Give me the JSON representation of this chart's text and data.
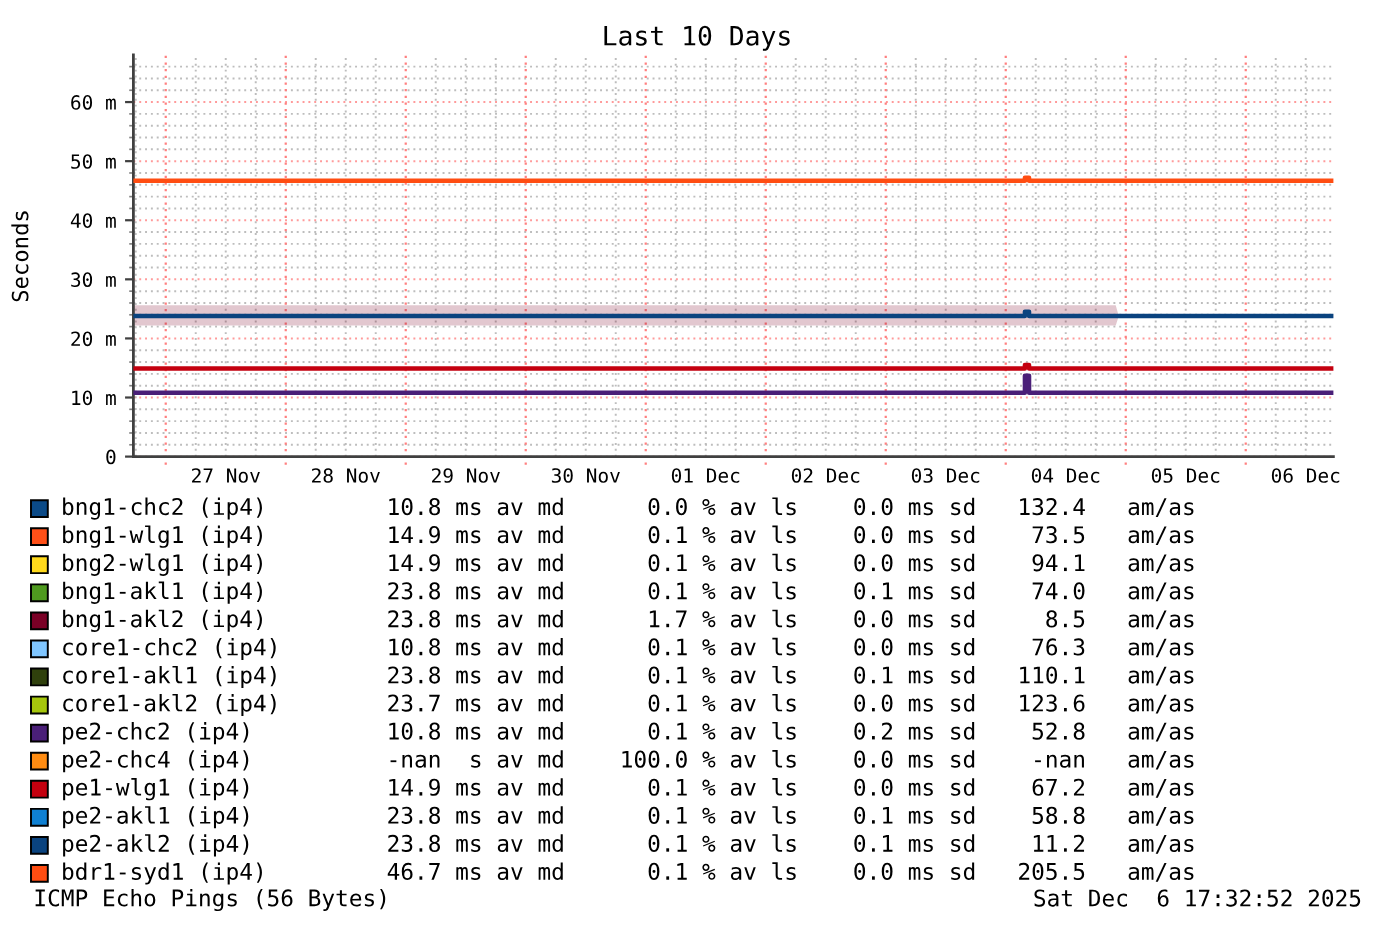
{
  "chart_data": {
    "type": "line",
    "title": "Last 10 Days",
    "ylabel": "Seconds",
    "xlim": [
      "2025-11-26T17:32",
      "2025-12-06T17:32"
    ],
    "xticks": [
      {
        "value": "2025-11-26T18:00",
        "label": null
      },
      {
        "value": "2025-11-27T06:00",
        "label": null
      },
      {
        "value": "2025-11-27T12:00",
        "label": "27 Nov"
      },
      {
        "value": "2025-11-27T18:00",
        "label": null
      },
      {
        "value": "2025-11-28T06:00",
        "label": null
      },
      {
        "value": "2025-11-28T12:00",
        "label": "28 Nov"
      },
      {
        "value": "2025-11-28T18:00",
        "label": null
      },
      {
        "value": "2025-11-29T06:00",
        "label": null
      },
      {
        "value": "2025-11-29T12:00",
        "label": "29 Nov"
      },
      {
        "value": "2025-11-29T18:00",
        "label": null
      },
      {
        "value": "2025-11-30T06:00",
        "label": null
      },
      {
        "value": "2025-11-30T12:00",
        "label": "30 Nov"
      },
      {
        "value": "2025-11-30T18:00",
        "label": null
      },
      {
        "value": "2025-12-01T06:00",
        "label": null
      },
      {
        "value": "2025-12-01T12:00",
        "label": "01 Dec"
      },
      {
        "value": "2025-12-01T18:00",
        "label": null
      },
      {
        "value": "2025-12-02T06:00",
        "label": null
      },
      {
        "value": "2025-12-02T12:00",
        "label": "02 Dec"
      },
      {
        "value": "2025-12-02T18:00",
        "label": null
      },
      {
        "value": "2025-12-03T06:00",
        "label": null
      },
      {
        "value": "2025-12-03T12:00",
        "label": "03 Dec"
      },
      {
        "value": "2025-12-03T18:00",
        "label": null
      },
      {
        "value": "2025-12-04T06:00",
        "label": null
      },
      {
        "value": "2025-12-04T12:00",
        "label": "04 Dec"
      },
      {
        "value": "2025-12-04T18:00",
        "label": null
      },
      {
        "value": "2025-12-05T06:00",
        "label": null
      },
      {
        "value": "2025-12-05T12:00",
        "label": "05 Dec"
      },
      {
        "value": "2025-12-05T18:00",
        "label": null
      },
      {
        "value": "2025-12-06T06:00",
        "label": null
      },
      {
        "value": "2025-12-06T12:00",
        "label": "06 Dec"
      }
    ],
    "ylim": [
      0,
      68
    ],
    "yticks": [
      0,
      {
        "value": 10,
        "label": "10 m"
      },
      {
        "value": 20,
        "label": "20 m"
      },
      {
        "value": 30,
        "label": "30 m"
      },
      {
        "value": 40,
        "label": "40 m"
      },
      {
        "value": 50,
        "label": "50 m"
      },
      {
        "value": 60,
        "label": "60 m"
      },
      {
        "value": 2,
        "label": null
      },
      {
        "value": 4,
        "label": null
      },
      {
        "value": 6,
        "label": null
      },
      {
        "value": 8,
        "label": null
      },
      {
        "value": 12,
        "label": null
      },
      {
        "value": 14,
        "label": null
      },
      {
        "value": 16,
        "label": null
      },
      {
        "value": 18,
        "label": null
      },
      {
        "value": 22,
        "label": null
      },
      {
        "value": 24,
        "label": null
      },
      {
        "value": 26,
        "label": null
      },
      {
        "value": 28,
        "label": null
      },
      {
        "value": 32,
        "label": null
      },
      {
        "value": 34,
        "label": null
      },
      {
        "value": 36,
        "label": null
      },
      {
        "value": 38,
        "label": null
      },
      {
        "value": 42,
        "label": null
      },
      {
        "value": 44,
        "label": null
      },
      {
        "value": 46,
        "label": null
      },
      {
        "value": 48,
        "label": null
      },
      {
        "value": 52,
        "label": null
      },
      {
        "value": 54,
        "label": null
      },
      {
        "value": 56,
        "label": null
      },
      {
        "value": 58,
        "label": null
      },
      {
        "value": 62,
        "label": null
      },
      {
        "value": 64,
        "label": null
      },
      {
        "value": 66,
        "label": null
      }
    ],
    "grid": true,
    "legend": "bottom",
    "ref_lines": [
      {
        "axis": "x",
        "value": "2025-11-27T00:00",
        "color": "#ff8080",
        "line_style": "dotted"
      },
      {
        "axis": "x",
        "value": "2025-11-28T00:00",
        "color": "#ff8080",
        "line_style": "dotted"
      },
      {
        "axis": "x",
        "value": "2025-11-29T00:00",
        "color": "#ff8080",
        "line_style": "dotted"
      },
      {
        "axis": "x",
        "value": "2025-11-30T00:00",
        "color": "#ff8080",
        "line_style": "dotted"
      },
      {
        "axis": "x",
        "value": "2025-12-01T00:00",
        "color": "#ff8080",
        "line_style": "dotted"
      },
      {
        "axis": "x",
        "value": "2025-12-02T00:00",
        "color": "#ff8080",
        "line_style": "dotted"
      },
      {
        "axis": "x",
        "value": "2025-12-03T00:00",
        "color": "#ff8080",
        "line_style": "dotted"
      },
      {
        "axis": "x",
        "value": "2025-12-04T00:00",
        "color": "#ff8080",
        "line_style": "dotted"
      },
      {
        "axis": "x",
        "value": "2025-12-05T00:00",
        "color": "#ff8080",
        "line_style": "dotted"
      },
      {
        "axis": "x",
        "value": "2025-12-06T00:00",
        "color": "#ff8080",
        "line_style": "dotted"
      }
    ],
    "series": [
      {
        "name": "bng1-chc2 (ip4)",
        "color": "#0b4a87"
      },
      {
        "name": "bng1-wlg1 (ip4)",
        "color": "#ff5018"
      },
      {
        "name": "bng2-wlg1 (ip4)",
        "color": "#ffd91c"
      },
      {
        "name": "bng1-akl1 (ip4)",
        "color": "#4f9a1f"
      },
      {
        "name": "bng1-akl2 (ip4)",
        "color": "#7a0026",
        "x": [
          "2025-11-26T17:32",
          "2025-12-04T22:00",
          "2025-12-04T22:30",
          "2025-12-06T17:32"
        ],
        "values": [
          null,
          null,
          null,
          null
        ],
        "lower": [
          22.2,
          22.2,
          23.5,
          23.5
        ],
        "upper": [
          25.6,
          25.6,
          24.1,
          24.1
        ]
      },
      {
        "name": "core1-chc2 (ip4)",
        "color": "#80c6ff"
      },
      {
        "name": "core1-akl1 (ip4)",
        "color": "#2f400c"
      },
      {
        "name": "core1-akl2 (ip4)",
        "color": "#a5c60c"
      },
      {
        "name": "pe2-chc2 (ip4)",
        "color": "#4a1f78",
        "x": [
          "2025-11-26T17:32",
          "2025-12-04T03:50",
          "2025-12-04T03:50",
          "2025-12-04T04:40",
          "2025-12-04T04:40",
          "2025-12-06T17:32"
        ],
        "values": [
          10.8,
          10.8,
          13.7,
          13.7,
          10.8,
          10.8
        ]
      },
      {
        "name": "pe2-chc4 (ip4)",
        "color": "#ff8c12"
      },
      {
        "name": "pe1-wlg1 (ip4)",
        "color": "#c4000f",
        "x": [
          "2025-11-26T17:32",
          "2025-12-04T03:50",
          "2025-12-04T03:50",
          "2025-12-04T04:40",
          "2025-12-04T04:40",
          "2025-12-06T17:32"
        ],
        "values": [
          14.9,
          14.9,
          15.5,
          15.5,
          14.9,
          14.9
        ]
      },
      {
        "name": "pe2-akl1 (ip4)",
        "color": "#0f80d2"
      },
      {
        "name": "pe2-akl2 (ip4)",
        "color": "#0a437f",
        "x": [
          "2025-11-26T17:32",
          "2025-12-04T03:50",
          "2025-12-04T03:50",
          "2025-12-04T04:40",
          "2025-12-04T04:40",
          "2025-12-06T17:32"
        ],
        "values": [
          23.8,
          23.8,
          24.5,
          24.5,
          23.8,
          23.8
        ]
      },
      {
        "name": "bdr1-syd1 (ip4)",
        "color": "#ff4d12",
        "x": [
          "2025-11-26T17:32",
          "2025-12-04T03:50",
          "2025-12-04T03:50",
          "2025-12-04T04:40",
          "2025-12-04T04:40",
          "2025-12-06T17:32"
        ],
        "values": [
          46.7,
          46.7,
          47.2,
          47.2,
          46.7,
          46.7
        ]
      }
    ],
    "annotations": [
      "10.8 ms av md      0.0 % av ls    0.0 ms sd   132.4   am/as",
      "14.9 ms av md      0.1 % av ls    0.0 ms sd    73.5   am/as",
      "14.9 ms av md      0.1 % av ls    0.0 ms sd    94.1   am/as",
      "23.8 ms av md      0.1 % av ls    0.1 ms sd    74.0   am/as",
      "23.8 ms av md      1.7 % av ls    0.0 ms sd     8.5   am/as",
      "10.8 ms av md      0.1 % av ls    0.0 ms sd    76.3   am/as",
      "23.8 ms av md      0.1 % av ls    0.1 ms sd   110.1   am/as",
      "23.7 ms av md      0.1 % av ls    0.0 ms sd   123.6   am/as",
      "10.8 ms av md      0.1 % av ls    0.2 ms sd    52.8   am/as",
      "-nan  s av md    100.0 % av ls    0.0 ms sd    -nan   am/as",
      "14.9 ms av md      0.1 % av ls    0.0 ms sd    67.2   am/as",
      "23.8 ms av md      0.1 % av ls    0.1 ms sd    58.8   am/as",
      "23.8 ms av md      0.1 % av ls    0.1 ms sd    11.2   am/as",
      "46.7 ms av md      0.1 % av ls    0.0 ms sd   205.5   am/as",
      "ICMP Echo Pings (56 Bytes)",
      "Sat Dec  6 17:32:52 2025"
    ]
  }
}
